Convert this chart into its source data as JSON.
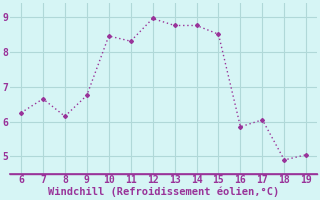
{
  "x": [
    6,
    7,
    8,
    9,
    10,
    11,
    12,
    13,
    14,
    15,
    16,
    17,
    18,
    19
  ],
  "y": [
    6.25,
    6.65,
    6.15,
    6.75,
    8.45,
    8.3,
    8.95,
    8.75,
    8.75,
    8.5,
    5.85,
    6.05,
    4.9,
    5.05
  ],
  "line_color": "#993399",
  "marker": "D",
  "marker_size": 2,
  "line_width": 1.0,
  "background_color": "#d6f5f5",
  "grid_color": "#b0d8d8",
  "xlabel": "Windchill (Refroidissement éolien,°C)",
  "xlabel_color": "#993399",
  "xlabel_fontsize": 7.5,
  "tick_color": "#993399",
  "tick_fontsize": 7,
  "xlim": [
    5.5,
    19.5
  ],
  "ylim": [
    4.5,
    9.4
  ],
  "xticks": [
    6,
    7,
    8,
    9,
    10,
    11,
    12,
    13,
    14,
    15,
    16,
    17,
    18,
    19
  ],
  "yticks": [
    5,
    6,
    7,
    8,
    9
  ],
  "separator_color": "#993399"
}
